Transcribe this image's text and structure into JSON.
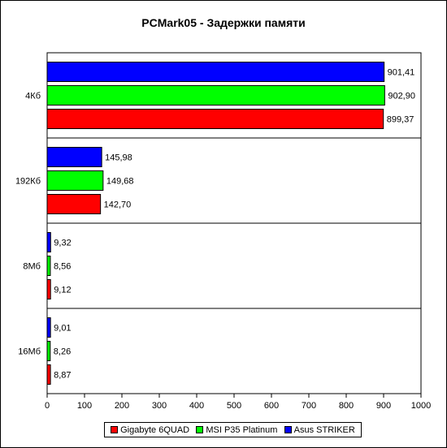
{
  "chart_data": {
    "type": "bar",
    "orientation": "horizontal",
    "title": "PCMark05 - Задержки памяти",
    "categories": [
      "4Кб",
      "192Кб",
      "8Мб",
      "16Мб"
    ],
    "series": [
      {
        "name": "Asus STRIKER",
        "color": "#0000ff",
        "values": [
          901.41,
          145.98,
          9.32,
          9.01
        ],
        "labels": [
          "901,41",
          "145,98",
          "9,32",
          "9,01"
        ]
      },
      {
        "name": "MSI P35 Platinum",
        "color": "#00ff00",
        "values": [
          902.9,
          149.68,
          8.56,
          8.26
        ],
        "labels": [
          "902,90",
          "149,68",
          "8,56",
          "8,26"
        ]
      },
      {
        "name": "Gigabyte 6QUAD",
        "color": "#ff0000",
        "values": [
          899.37,
          142.7,
          9.12,
          8.87
        ],
        "labels": [
          "899,37",
          "142,70",
          "9,12",
          "8,87"
        ]
      }
    ],
    "xlim": [
      0,
      1000
    ],
    "xticks": [
      0,
      100,
      200,
      300,
      400,
      500,
      600,
      700,
      800,
      900,
      1000
    ],
    "legend_order": [
      "Gigabyte 6QUAD",
      "MSI P35 Platinum",
      "Asus STRIKER"
    ],
    "legend_position": "bottom",
    "grid": false
  }
}
